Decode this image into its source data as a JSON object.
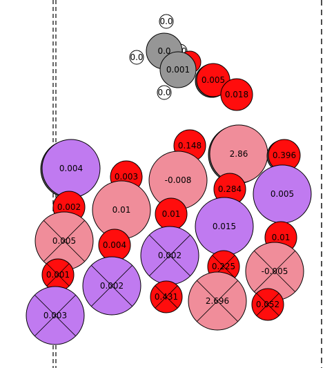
{
  "colors": {
    "gray": "#969696",
    "red": "#ff0d0d",
    "pink": "#f08d9a",
    "purple": "#c07af0",
    "white": "#ffffff",
    "outline": "#000000"
  },
  "atoms": [
    {
      "label": "0.0",
      "element": "white"
    },
    {
      "label": "0.0",
      "element": "white"
    },
    {
      "label": "0.0",
      "element": "white"
    },
    {
      "label": "0.0",
      "element": "white"
    },
    {
      "label": "0.0",
      "element": "gray"
    },
    {
      "label": "",
      "element": "red"
    },
    {
      "label": "0.001",
      "element": "gray"
    },
    {
      "label": "0.005",
      "element": "red"
    },
    {
      "label": "0.018",
      "element": "red"
    },
    {
      "label": "0.148",
      "element": "red"
    },
    {
      "label": "2.86",
      "element": "pink"
    },
    {
      "label": "0.396",
      "element": "red"
    },
    {
      "label": "0.004",
      "element": "purple"
    },
    {
      "label": "0.003",
      "element": "red"
    },
    {
      "label": "-0.008",
      "element": "pink"
    },
    {
      "label": "0.284",
      "element": "red"
    },
    {
      "label": "0.005",
      "element": "purple"
    },
    {
      "label": "0.002",
      "element": "red"
    },
    {
      "label": "0.01",
      "element": "pink"
    },
    {
      "label": "0.01",
      "element": "red"
    },
    {
      "label": "0.015",
      "element": "purple"
    },
    {
      "label": "0.005",
      "element": "pink"
    },
    {
      "label": "0.004",
      "element": "red"
    },
    {
      "label": "0.002",
      "element": "purple"
    },
    {
      "label": "0.01",
      "element": "red"
    },
    {
      "label": "0.225",
      "element": "red"
    },
    {
      "label": "-0.005",
      "element": "pink"
    },
    {
      "label": "0.001",
      "element": "red"
    },
    {
      "label": "0.002",
      "element": "purple"
    },
    {
      "label": "0.431",
      "element": "red"
    },
    {
      "label": "2.696",
      "element": "pink"
    },
    {
      "label": "0.052",
      "element": "red"
    },
    {
      "label": "0.003",
      "element": "purple"
    }
  ]
}
